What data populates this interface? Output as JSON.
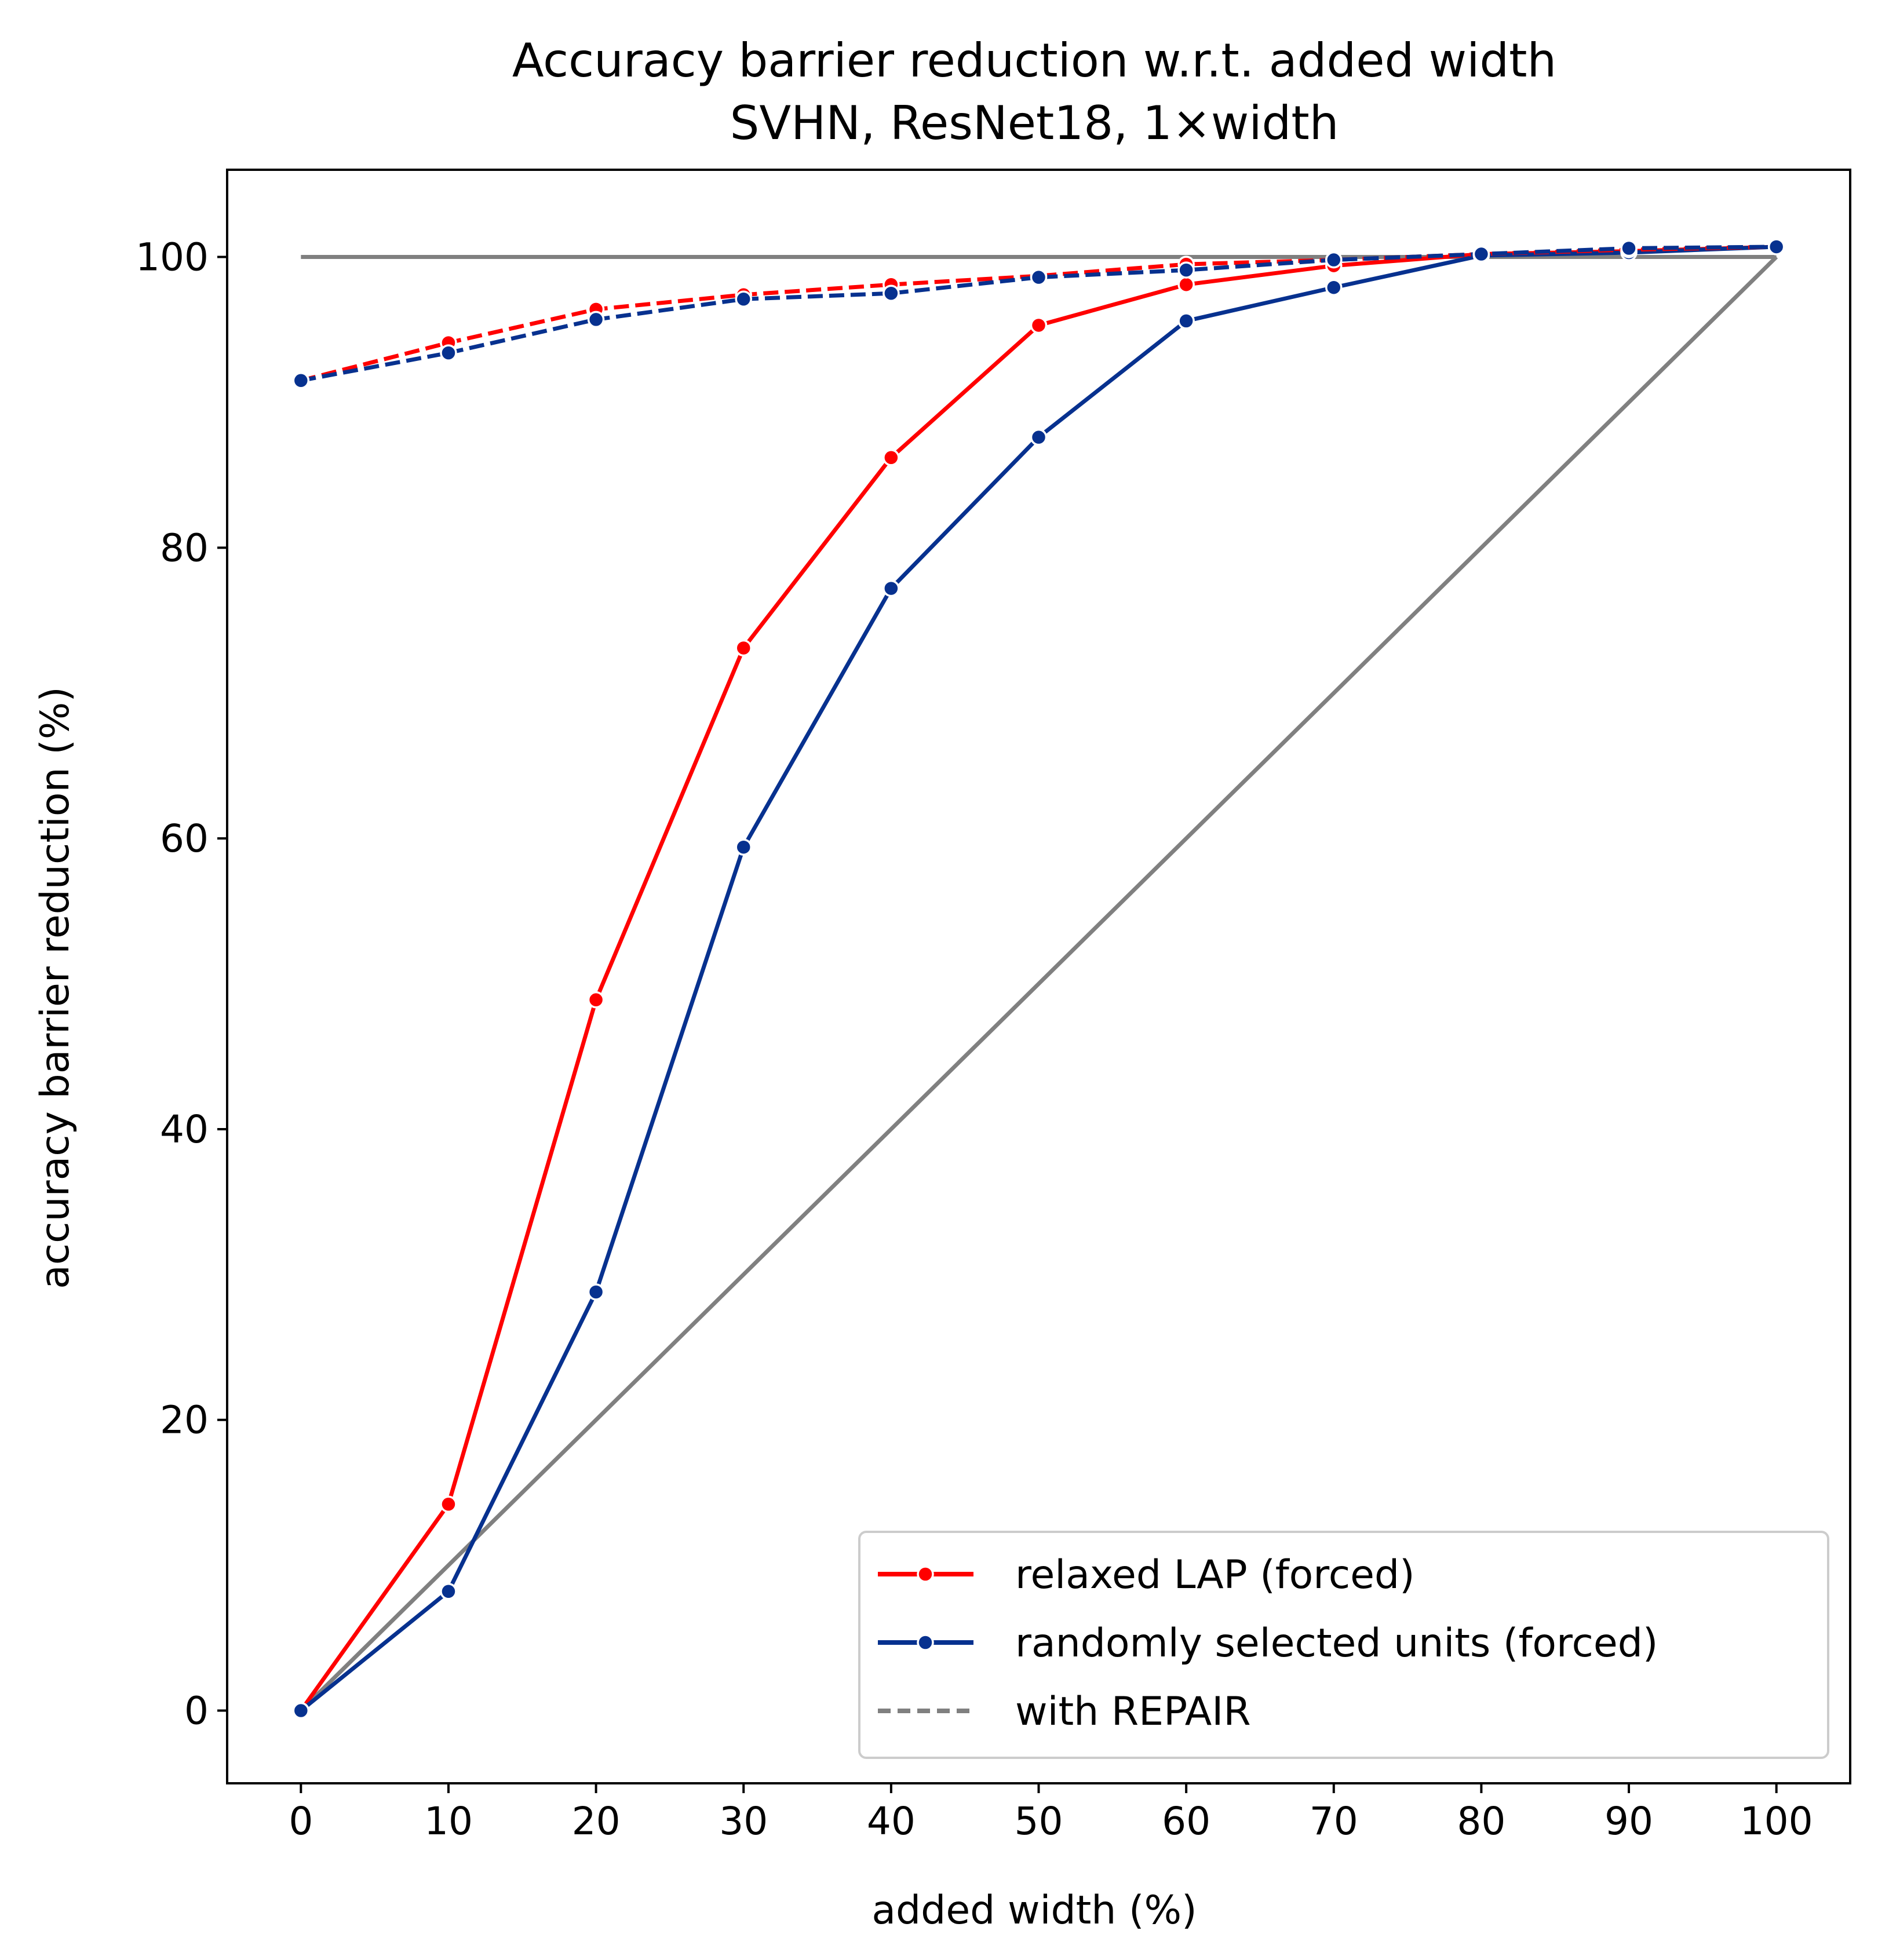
{
  "chart_data": {
    "type": "line",
    "title": "Accuracy barrier reduction w.r.t. added width",
    "subtitle": "SVHN, ResNet18, 1×width",
    "xlabel": "added width (%)",
    "ylabel": "accuracy barrier reduction (%)",
    "xlim": [
      -5,
      105
    ],
    "ylim": [
      -5,
      106
    ],
    "xticks": [
      0,
      10,
      20,
      30,
      40,
      50,
      60,
      70,
      80,
      90,
      100
    ],
    "yticks": [
      0,
      20,
      40,
      60,
      80,
      100
    ],
    "grid": false,
    "legend_position": "lower-right",
    "x": [
      0,
      10,
      20,
      30,
      40,
      50,
      60,
      70,
      80,
      90,
      100
    ],
    "reference_lines": [
      {
        "x": [
          0,
          100
        ],
        "y": [
          100,
          100
        ],
        "color": "#808080"
      },
      {
        "x": [
          0,
          100
        ],
        "y": [
          0,
          100
        ],
        "color": "#808080"
      }
    ],
    "series": [
      {
        "name": "relaxed LAP (forced)",
        "color": "#ff0000",
        "style": "solid",
        "values": [
          0,
          14.2,
          48.9,
          73.1,
          86.2,
          95.3,
          98.1,
          99.4,
          100.2,
          100.4,
          100.7
        ]
      },
      {
        "name": "randomly selected units (forced)",
        "color": "#07318f",
        "style": "solid",
        "values": [
          0,
          8.2,
          28.8,
          59.4,
          77.2,
          87.6,
          95.6,
          97.9,
          100.1,
          100.3,
          100.7
        ]
      },
      {
        "name": "",
        "color": "#ff0000",
        "style": "dashed",
        "values": [
          91.5,
          94.1,
          96.4,
          97.4,
          98.1,
          98.7,
          99.5,
          99.8,
          100.2,
          100.5,
          100.7
        ]
      },
      {
        "name": "",
        "color": "#07318f",
        "style": "dashed",
        "values": [
          91.5,
          93.4,
          95.7,
          97.1,
          97.5,
          98.6,
          99.1,
          99.8,
          100.2,
          100.6,
          100.7
        ]
      }
    ],
    "legend_entries": [
      {
        "label": "relaxed LAP (forced)",
        "color": "#ff0000",
        "style": "solid",
        "marker": true
      },
      {
        "label": "randomly selected units (forced)",
        "color": "#07318f",
        "style": "solid",
        "marker": true
      },
      {
        "label": "with REPAIR",
        "color": "#808080",
        "style": "dashed",
        "marker": false
      }
    ]
  }
}
